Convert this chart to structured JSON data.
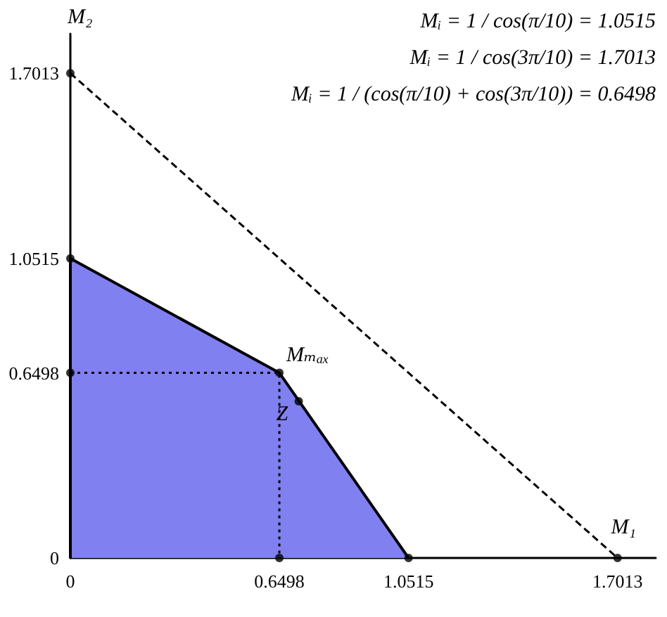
{
  "chart_data": {
    "type": "line",
    "xlabel": "M₁",
    "ylabel": "M₂",
    "xlim": [
      0,
      1.82
    ],
    "ylim": [
      0,
      1.84
    ],
    "xticks": [
      0,
      0.6498,
      1.0515,
      1.7013
    ],
    "yticks": [
      0,
      0.6498,
      1.0515,
      1.7013
    ],
    "grid": false,
    "series": [
      {
        "type": "area",
        "color": "#8080f0",
        "x": [
          0,
          0,
          0.6498,
          1.0515
        ],
        "values": [
          0,
          1.0515,
          0.6498,
          0
        ]
      },
      {
        "color": "#000000",
        "line_style": "dashed",
        "x": [
          0,
          1.7013
        ],
        "values": [
          1.7013,
          0
        ]
      },
      {
        "color": "#000000",
        "line_style": "dotted",
        "x": [
          0,
          0.6498,
          0.6498
        ],
        "values": [
          0.6498,
          0.6498,
          0
        ]
      },
      {
        "type": "scatter",
        "color": "#000000",
        "marker": "circle",
        "x": [
          0,
          0,
          0,
          0.6498,
          1.0515,
          1.7013,
          0.6498,
          0.71
        ],
        "values": [
          1.7013,
          1.0515,
          0.6498,
          0,
          0,
          0,
          0.6498,
          0.55
        ]
      }
    ],
    "annotations": [
      "Mᵢ = 1 / cos(π/10) = 1.0515",
      "Mᵢ = 1 / cos(3π/10) = 1.7013",
      "Mᵢ = 1 / (cos(π/10) + cos(3π/10)) = 0.6498",
      {
        "text": "Mₘₐₓ",
        "x": 0.6498,
        "y": 0.6498
      },
      {
        "text": "Z",
        "x": 0.71,
        "y": 0.55
      }
    ]
  }
}
